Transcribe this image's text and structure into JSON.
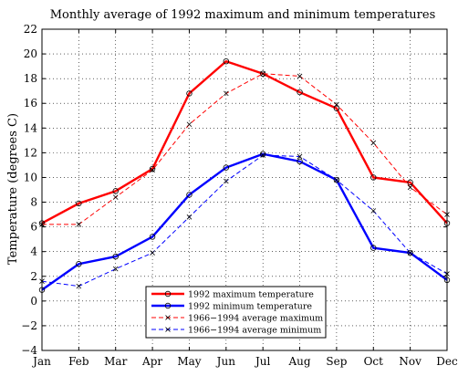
{
  "chart_data": {
    "type": "line",
    "title": "Monthly average of 1992 maximum and minimum temperatures",
    "xlabel": "",
    "ylabel": "Temperature (degrees C)",
    "categories": [
      "Jan",
      "Feb",
      "Mar",
      "Apr",
      "May",
      "Jun",
      "Jul",
      "Aug",
      "Sep",
      "Oct",
      "Nov",
      "Dec"
    ],
    "ylim": [
      -4,
      22
    ],
    "yticks": [
      -4,
      -2,
      0,
      2,
      4,
      6,
      8,
      10,
      12,
      14,
      16,
      18,
      20,
      22
    ],
    "ytick_labels": [
      "−4",
      "−2",
      "0",
      "2",
      "4",
      "6",
      "8",
      "10",
      "12",
      "14",
      "16",
      "18",
      "20",
      "22"
    ],
    "grid": true,
    "legend_position": "bottom-center",
    "series": [
      {
        "name": "1992 maximum temperature",
        "color": "#ff0000",
        "style": "solid",
        "marker": "circle",
        "values": [
          6.3,
          7.9,
          8.9,
          10.7,
          16.8,
          19.4,
          18.4,
          16.9,
          15.6,
          10.0,
          9.6,
          6.3
        ]
      },
      {
        "name": "1992 minimum temperature",
        "color": "#0000ff",
        "style": "solid",
        "marker": "circle",
        "values": [
          0.9,
          3.0,
          3.6,
          5.2,
          8.6,
          10.8,
          11.9,
          11.3,
          9.8,
          4.3,
          3.9,
          1.7
        ]
      },
      {
        "name": "1966−1994 average maximum",
        "color": "#ff0000",
        "style": "dashed",
        "marker": "x",
        "values": [
          6.2,
          6.2,
          8.4,
          10.6,
          14.3,
          16.8,
          18.4,
          18.2,
          15.9,
          12.8,
          9.2,
          7.0
        ]
      },
      {
        "name": "1966−1994 average minimum",
        "color": "#0000ff",
        "style": "dashed",
        "marker": "x",
        "values": [
          1.6,
          1.2,
          2.6,
          3.9,
          6.8,
          9.7,
          11.8,
          11.7,
          9.8,
          7.3,
          3.9,
          2.2
        ]
      }
    ]
  }
}
